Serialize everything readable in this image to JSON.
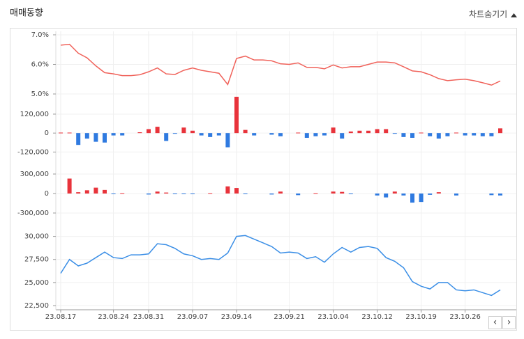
{
  "header": {
    "title": "매매동향",
    "toggle": "차트숨기기"
  },
  "nav": {
    "prev": "‹",
    "next": "›"
  },
  "chart_data": [
    {
      "type": "line",
      "color": "#f0625a",
      "ylim": [
        5,
        7
      ],
      "yticks": [
        {
          "value": 7,
          "label": "7.0%"
        },
        {
          "value": 6,
          "label": "6.0%"
        },
        {
          "value": 5,
          "label": "5.0%"
        }
      ],
      "values": [
        6.65,
        6.68,
        6.38,
        6.22,
        5.95,
        5.72,
        5.68,
        5.62,
        5.62,
        5.65,
        5.75,
        5.88,
        5.68,
        5.66,
        5.8,
        5.88,
        5.8,
        5.75,
        5.7,
        5.32,
        6.2,
        6.28,
        6.15,
        6.15,
        6.12,
        6.02,
        6.0,
        6.05,
        5.9,
        5.9,
        5.85,
        5.98,
        5.88,
        5.92,
        5.92,
        6.0,
        6.08,
        6.08,
        6.05,
        5.92,
        5.78,
        5.75,
        5.65,
        5.52,
        5.45,
        5.48,
        5.5,
        5.45,
        5.38,
        5.3,
        5.44
      ]
    },
    {
      "type": "bar",
      "color": "#e8333b",
      "negative_color": "#2f7ae0",
      "ylim": [
        -180000,
        230000
      ],
      "yticks": [
        {
          "value": 120000,
          "label": "120,000"
        },
        0,
        {
          "value": -120000,
          "label": "-120,000"
        }
      ],
      "values": [
        3000,
        3000,
        -75000,
        -35000,
        -55000,
        -60000,
        -15000,
        -15000,
        0,
        5000,
        25000,
        40000,
        -50000,
        -3000,
        35000,
        15000,
        -15000,
        -25000,
        -15000,
        -90000,
        230000,
        20000,
        -15000,
        0,
        -10000,
        -20000,
        0,
        3000,
        -30000,
        -20000,
        -15000,
        35000,
        -35000,
        10000,
        15000,
        15000,
        25000,
        25000,
        -3000,
        -25000,
        -30000,
        3000,
        -20000,
        -35000,
        -20000,
        3000,
        -15000,
        -15000,
        -20000,
        -20000,
        30000
      ]
    },
    {
      "type": "bar",
      "color": "#e8333b",
      "negative_color": "#2f7ae0",
      "ylim": [
        -450000,
        450000
      ],
      "yticks": [
        {
          "value": 300000,
          "label": "300,000"
        },
        0,
        {
          "value": -300000,
          "label": "-300,000"
        }
      ],
      "values": [
        0,
        230000,
        20000,
        50000,
        90000,
        55000,
        -5000,
        5000,
        0,
        0,
        -15000,
        30000,
        15000,
        -10000,
        -10000,
        -10000,
        0,
        5000,
        0,
        110000,
        85000,
        -5000,
        0,
        0,
        -15000,
        30000,
        0,
        -25000,
        0,
        5000,
        0,
        30000,
        25000,
        -5000,
        0,
        0,
        -30000,
        -60000,
        30000,
        -30000,
        -140000,
        -130000,
        -20000,
        20000,
        0,
        -30000,
        0,
        0,
        0,
        -25000,
        -30000
      ]
    },
    {
      "type": "line",
      "color": "#3a8ee6",
      "ylim": [
        22500,
        31100
      ],
      "yticks": [
        {
          "value": 30000,
          "label": "30,000"
        },
        {
          "value": 27500,
          "label": "27,500"
        },
        {
          "value": 25000,
          "label": "25,000"
        },
        {
          "value": 22500,
          "label": "22,500"
        }
      ],
      "values": [
        26000,
        27500,
        26800,
        27100,
        27700,
        28300,
        27700,
        27600,
        28000,
        28000,
        28100,
        29200,
        29100,
        28700,
        28100,
        27900,
        27500,
        27600,
        27500,
        28200,
        30000,
        30100,
        29700,
        29300,
        28900,
        28200,
        28300,
        28200,
        27600,
        27800,
        27200,
        28100,
        28800,
        28300,
        28800,
        28900,
        28700,
        27700,
        27300,
        26600,
        25100,
        24600,
        24300,
        25000,
        25000,
        24200,
        24100,
        24200,
        23900,
        23600,
        24200
      ],
      "categories": [
        "23.08.17",
        null,
        null,
        null,
        null,
        null,
        "23.08.24",
        null,
        null,
        null,
        "23.08.31",
        null,
        null,
        null,
        null,
        "23.09.07",
        null,
        null,
        null,
        null,
        "23.09.14",
        null,
        null,
        null,
        null,
        null,
        "23.09.21",
        null,
        null,
        null,
        null,
        "23.10.04",
        null,
        null,
        null,
        null,
        "23.10.12",
        null,
        null,
        null,
        null,
        "23.10.19",
        null,
        null,
        null,
        null,
        "23.10.26",
        null,
        null,
        null,
        null
      ]
    }
  ]
}
